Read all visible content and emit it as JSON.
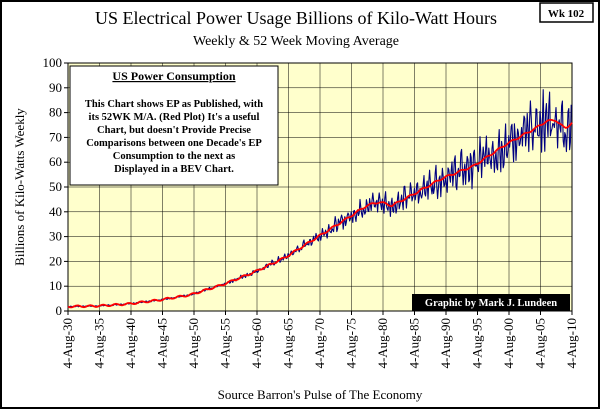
{
  "chart_data": {
    "type": "line",
    "title": "US Electrical Power Usage Billions of Kilo-Watt Hours",
    "subtitle": "Weekly & 52 Week Moving Average",
    "tag": "Wk 102",
    "ylabel": "Billions of Kilo-Watts Weekly",
    "xlabel": "Source Barron's Pulse of The Economy",
    "ylim": [
      0,
      100
    ],
    "yticks": [
      0,
      10,
      20,
      30,
      40,
      50,
      60,
      70,
      80,
      90,
      100
    ],
    "xlim": [
      1930.59,
      2010.59
    ],
    "xticks": [
      "4-Aug-30",
      "4-Aug-35",
      "4-Aug-40",
      "4-Aug-45",
      "4-Aug-50",
      "4-Aug-55",
      "4-Aug-60",
      "4-Aug-65",
      "4-Aug-70",
      "4-Aug-75",
      "4-Aug-80",
      "4-Aug-85",
      "4-Aug-90",
      "4-Aug-95",
      "4-Aug-00",
      "4-Aug-05",
      "4-Aug-10"
    ],
    "grid": true,
    "colors": {
      "plot_bg": "#ffffcc",
      "weekly": "#000080",
      "moving_average": "#ff0000"
    },
    "series": [
      {
        "role": "weekly",
        "x": [
          1930.6,
          1935,
          1940,
          1945,
          1950,
          1955,
          1960,
          1965,
          1970,
          1975,
          1978,
          1980,
          1982,
          1985,
          1990,
          1995,
          2000,
          2005,
          2006.5,
          2008,
          2009.5,
          2010.6
        ],
        "y": [
          1.8,
          2.0,
          2.8,
          4.4,
          6.5,
          10.5,
          15.5,
          21.5,
          29.5,
          37.5,
          42.5,
          44.0,
          42.5,
          46.5,
          53.5,
          58.5,
          67.0,
          74.0,
          76.5,
          77.0,
          73.5,
          76.0
        ],
        "swing": [
          0.2,
          0.2,
          0.3,
          0.3,
          0.4,
          0.6,
          1.0,
          1.5,
          2.5,
          3.5,
          4.5,
          5.0,
          5.0,
          5.5,
          7.5,
          9.0,
          11.0,
          12.5,
          13.0,
          12.5,
          12.0,
          11.5
        ]
      },
      {
        "role": "moving_average",
        "x": [
          1930.6,
          1935,
          1940,
          1945,
          1950,
          1955,
          1960,
          1965,
          1970,
          1975,
          1978,
          1980,
          1982,
          1985,
          1990,
          1995,
          2000,
          2005,
          2006.5,
          2008,
          2009.5,
          2010.6
        ],
        "y": [
          1.8,
          2.0,
          2.8,
          4.4,
          6.5,
          10.5,
          15.5,
          21.5,
          29.5,
          37.5,
          42.5,
          44.0,
          42.5,
          46.5,
          53.5,
          58.5,
          67.0,
          74.0,
          76.5,
          77.0,
          73.5,
          76.0
        ]
      }
    ],
    "annotation": {
      "title": "US Power Consumption",
      "lines": [
        "This Chart shows EP as Published, with",
        "its 52WK M/A. (Red Plot)  It's a useful",
        "Chart, but doesn't Provide Precise",
        "Comparisons between one Decade's EP",
        "Consumption to the next as",
        "Displayed in a BEV Chart."
      ]
    },
    "credit": "Graphic by Mark J. Lundeen"
  }
}
